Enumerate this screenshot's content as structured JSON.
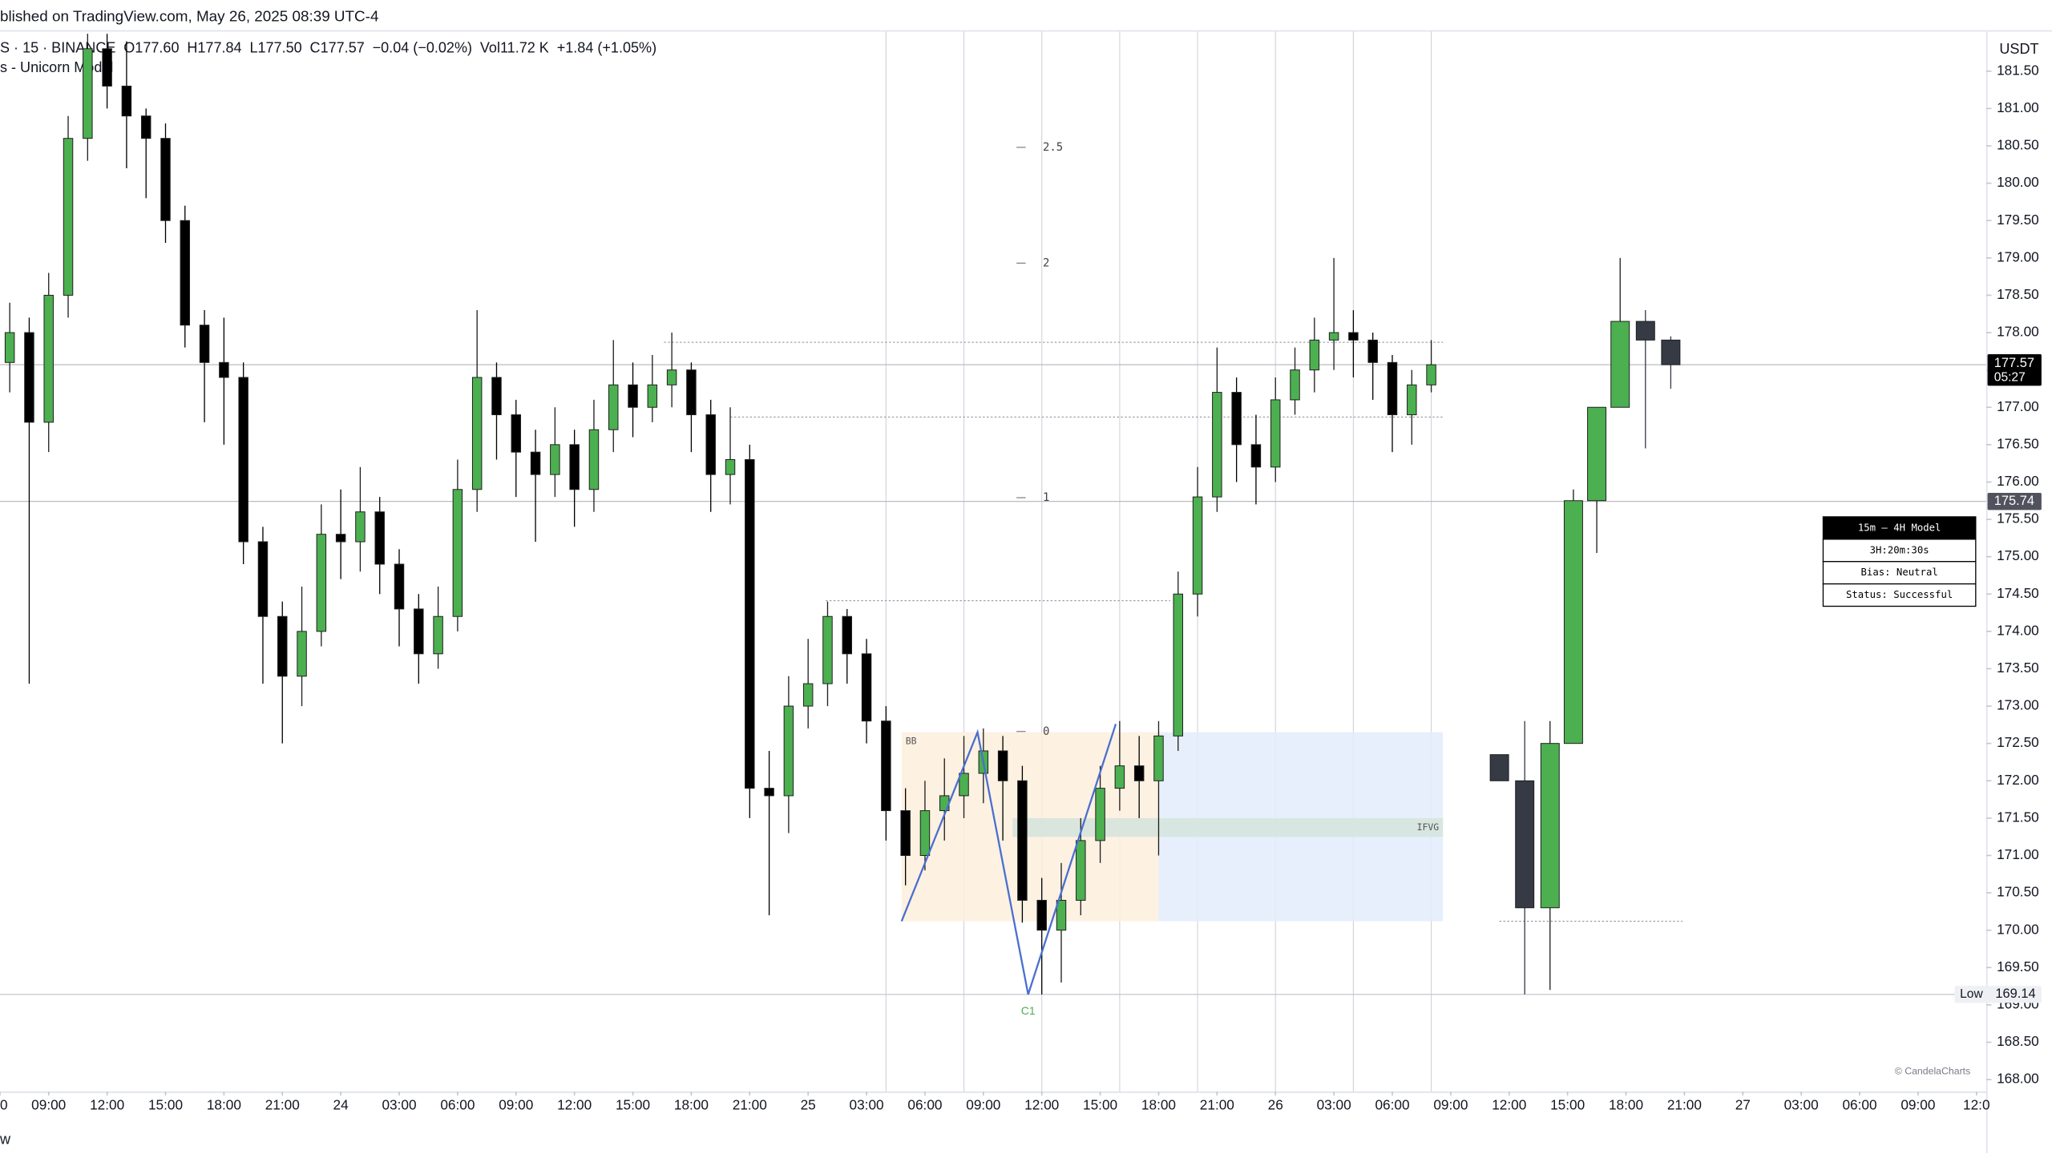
{
  "chart_data": {
    "type": "candlestick",
    "published": "blished on TradingView.com, May 26, 2025 08:39 UTC-4",
    "legend_items": [
      "S · 15 · BINANCE",
      "O177.60",
      "H177.84",
      "L177.50",
      "C177.57",
      "−0.04 (−0.02%)",
      "Vol11.72 K",
      "+1.84 (+1.05%)"
    ],
    "indicator": "s - Unicorn Model",
    "currency": "USDT",
    "watermark": "© CandelaCharts",
    "footer": "w",
    "up_color": "#4caf50",
    "down_color": "#000000",
    "x": [
      1,
      2,
      3,
      4,
      5,
      6,
      7,
      8,
      9,
      10,
      11,
      12,
      13,
      14,
      15,
      16,
      17,
      18,
      19,
      20,
      21,
      22,
      23,
      24,
      25,
      26,
      27,
      28,
      29,
      30,
      31,
      32,
      33,
      34,
      35,
      36,
      37,
      38,
      39,
      40,
      41,
      42,
      43,
      44,
      45,
      46,
      47,
      48,
      49,
      50,
      51,
      52,
      53,
      54,
      55,
      56,
      57,
      58,
      59,
      60,
      61,
      62,
      63,
      64,
      65,
      66,
      67,
      68,
      69,
      70,
      71,
      72,
      73,
      74
    ],
    "open": [
      177.6,
      178.0,
      176.8,
      178.5,
      180.6,
      181.8,
      181.3,
      180.9,
      180.6,
      179.5,
      178.1,
      177.6,
      177.4,
      175.2,
      174.2,
      173.4,
      174.0,
      175.3,
      175.2,
      175.6,
      174.9,
      174.3,
      173.7,
      174.2,
      175.9,
      177.4,
      176.9,
      176.4,
      176.1,
      176.5,
      175.9,
      176.7,
      177.3,
      177.0,
      177.3,
      177.5,
      176.9,
      176.1,
      176.3,
      171.9,
      171.8,
      173.0,
      173.3,
      174.2,
      173.7,
      172.8,
      171.6,
      171.0,
      171.6,
      171.8,
      172.1,
      172.4,
      172.0,
      170.4,
      170.0,
      170.4,
      171.2,
      171.9,
      172.2,
      172.0,
      172.6,
      174.5,
      175.8,
      177.2,
      176.5,
      176.2,
      177.1,
      177.5,
      177.9,
      178.0,
      177.9,
      177.6,
      176.9,
      177.3
    ],
    "high": [
      178.4,
      178.2,
      178.8,
      180.9,
      182.0,
      182.0,
      181.9,
      181.0,
      180.8,
      179.7,
      178.3,
      178.2,
      177.6,
      175.4,
      174.4,
      174.6,
      175.7,
      175.9,
      176.2,
      175.8,
      175.1,
      174.5,
      174.6,
      176.3,
      178.3,
      177.6,
      177.1,
      176.7,
      177.0,
      176.7,
      177.1,
      177.9,
      177.6,
      177.7,
      178.0,
      177.6,
      177.1,
      177.0,
      176.5,
      172.4,
      173.4,
      173.9,
      174.4,
      174.3,
      173.9,
      173.0,
      171.9,
      172.0,
      172.3,
      172.6,
      172.7,
      172.6,
      172.2,
      170.7,
      170.9,
      171.5,
      172.2,
      172.8,
      172.6,
      172.8,
      174.8,
      176.2,
      177.8,
      177.4,
      176.9,
      177.4,
      177.8,
      178.2,
      179.0,
      178.3,
      178.0,
      177.7,
      177.5,
      177.9
    ],
    "low": [
      177.2,
      173.3,
      176.4,
      178.2,
      180.3,
      181.0,
      180.2,
      179.8,
      179.2,
      177.8,
      176.8,
      176.5,
      174.9,
      173.3,
      172.5,
      173.0,
      173.8,
      174.7,
      174.8,
      174.5,
      173.8,
      173.3,
      173.5,
      174.0,
      175.6,
      176.3,
      175.8,
      175.2,
      175.8,
      175.4,
      175.6,
      176.4,
      176.6,
      176.8,
      177.0,
      176.4,
      175.6,
      175.7,
      171.5,
      170.2,
      171.3,
      172.7,
      173.0,
      173.3,
      172.5,
      171.2,
      170.6,
      170.8,
      171.2,
      171.5,
      171.7,
      171.2,
      170.1,
      169.14,
      169.3,
      170.2,
      170.9,
      171.6,
      171.5,
      171.0,
      172.4,
      174.2,
      175.6,
      176.0,
      175.7,
      176.0,
      176.9,
      177.2,
      177.5,
      177.4,
      177.1,
      176.4,
      176.5,
      177.2
    ],
    "close": [
      178.0,
      176.8,
      178.5,
      180.6,
      181.8,
      181.3,
      180.9,
      180.6,
      179.5,
      178.1,
      177.6,
      177.4,
      175.2,
      174.2,
      173.4,
      174.0,
      175.3,
      175.2,
      175.6,
      174.9,
      174.3,
      173.7,
      174.2,
      175.9,
      177.4,
      176.9,
      176.4,
      176.1,
      176.5,
      175.9,
      176.7,
      177.3,
      177.0,
      177.3,
      177.5,
      176.9,
      176.1,
      176.3,
      171.9,
      171.8,
      173.0,
      173.3,
      174.2,
      173.7,
      172.8,
      171.6,
      171.0,
      171.6,
      171.8,
      172.1,
      172.4,
      172.0,
      170.4,
      170.0,
      170.4,
      171.2,
      171.9,
      172.2,
      172.0,
      172.6,
      174.5,
      175.8,
      177.2,
      176.5,
      176.2,
      177.1,
      177.5,
      177.9,
      178.0,
      177.9,
      177.6,
      176.9,
      177.3,
      177.57
    ],
    "htf": {
      "up_color": "#4caf50",
      "down_color": "#363a45",
      "x": [
        77.5,
        78.8,
        80.1,
        81.3,
        82.5,
        83.7,
        85.0,
        86.3
      ],
      "open": [
        172.35,
        172.0,
        170.3,
        172.5,
        175.75,
        177.0,
        178.15,
        177.9
      ],
      "high": [
        172.35,
        172.8,
        172.8,
        175.9,
        177.0,
        179.0,
        178.3,
        177.95
      ],
      "low": [
        172.0,
        169.14,
        169.2,
        172.5,
        175.05,
        177.0,
        176.45,
        177.25
      ],
      "close": [
        172.0,
        170.3,
        172.5,
        175.75,
        177.0,
        178.15,
        177.9,
        177.57
      ]
    },
    "xlim": [
      0.5,
      102.5
    ],
    "xticks": [
      {
        "value": 0.5,
        "label": "0"
      },
      {
        "value": 3,
        "label": "09:00"
      },
      {
        "value": 6,
        "label": "12:00"
      },
      {
        "value": 9,
        "label": "15:00"
      },
      {
        "value": 12,
        "label": "18:00"
      },
      {
        "value": 15,
        "label": "21:00"
      },
      {
        "value": 18,
        "label": "24"
      },
      {
        "value": 21,
        "label": "03:00"
      },
      {
        "value": 24,
        "label": "06:00"
      },
      {
        "value": 27,
        "label": "09:00"
      },
      {
        "value": 30,
        "label": "12:00"
      },
      {
        "value": 33,
        "label": "15:00"
      },
      {
        "value": 36,
        "label": "18:00"
      },
      {
        "value": 39,
        "label": "21:00"
      },
      {
        "value": 42,
        "label": "25"
      },
      {
        "value": 45,
        "label": "03:00"
      },
      {
        "value": 48,
        "label": "06:00"
      },
      {
        "value": 51,
        "label": "09:00"
      },
      {
        "value": 54,
        "label": "12:00"
      },
      {
        "value": 57,
        "label": "15:00"
      },
      {
        "value": 60,
        "label": "18:00"
      },
      {
        "value": 63,
        "label": "21:00"
      },
      {
        "value": 66,
        "label": "26"
      },
      {
        "value": 69,
        "label": "03:00"
      },
      {
        "value": 72,
        "label": "06:00"
      },
      {
        "value": 75,
        "label": "09:00"
      },
      {
        "value": 78,
        "label": "12:00"
      },
      {
        "value": 81,
        "label": "15:00"
      },
      {
        "value": 84,
        "label": "18:00"
      },
      {
        "value": 87,
        "label": "21:00"
      },
      {
        "value": 90,
        "label": "27"
      },
      {
        "value": 93,
        "label": "03:00"
      },
      {
        "value": 96,
        "label": "06:00"
      },
      {
        "value": 99,
        "label": "09:00"
      },
      {
        "value": 102,
        "label": "12:0"
      }
    ],
    "ylim": [
      167.84,
      182.03
    ],
    "yticks": [
      {
        "value": 168,
        "label": "168.00"
      },
      {
        "value": 168.5,
        "label": "168.50"
      },
      {
        "value": 169,
        "label": "169.00"
      },
      {
        "value": 169.5,
        "label": "169.50"
      },
      {
        "value": 170,
        "label": "170.00"
      },
      {
        "value": 170.5,
        "label": "170.50"
      },
      {
        "value": 171,
        "label": "171.00"
      },
      {
        "value": 171.5,
        "label": "171.50"
      },
      {
        "value": 172,
        "label": "172.00"
      },
      {
        "value": 172.5,
        "label": "172.50"
      },
      {
        "value": 173,
        "label": "173.00"
      },
      {
        "value": 173.5,
        "label": "173.50"
      },
      {
        "value": 174,
        "label": "174.00"
      },
      {
        "value": 174.5,
        "label": "174.50"
      },
      {
        "value": 175,
        "label": "175.00"
      },
      {
        "value": 175.5,
        "label": "175.50"
      },
      {
        "value": 176,
        "label": "176.00"
      },
      {
        "value": 176.5,
        "label": "176.50"
      },
      {
        "value": 177,
        "label": "177.00"
      },
      {
        "value": 177.5,
        "label": "177.50"
      },
      {
        "value": 178,
        "label": "178.00"
      },
      {
        "value": 178.5,
        "label": "178.50"
      },
      {
        "value": 179,
        "label": "179.00"
      },
      {
        "value": 179.5,
        "label": "179.50"
      },
      {
        "value": 180,
        "label": "180.00"
      },
      {
        "value": 180.5,
        "label": "180.50"
      },
      {
        "value": 181,
        "label": "181.00"
      },
      {
        "value": 181.5,
        "label": "181.50"
      }
    ],
    "sessions": [
      46,
      50,
      54,
      58,
      62,
      66,
      70,
      74
    ],
    "zones": [
      {
        "label": "BB",
        "x": [
          46.8,
          60.0
        ],
        "y": [
          170.12,
          172.65
        ],
        "color": "#fdefdd"
      },
      {
        "x": [
          60.0,
          74.6
        ],
        "y": [
          170.12,
          172.65
        ],
        "color": "#e3ecfc"
      },
      {
        "label": "IFVG",
        "x": [
          52.5,
          74.6
        ],
        "y": [
          171.25,
          171.5
        ],
        "color": "#d3e4dc"
      }
    ],
    "fib_x": 52.7,
    "fib": [
      {
        "value": 180.48,
        "label": "2.5"
      },
      {
        "value": 178.93,
        "label": "2"
      },
      {
        "value": 175.79,
        "label": "1"
      },
      {
        "value": 172.66,
        "label": "0"
      }
    ],
    "levels": [
      {
        "x": [
          34.6,
          74.6
        ],
        "value": 177.87
      },
      {
        "x": [
          38.0,
          74.6
        ],
        "value": 176.87
      },
      {
        "x": [
          42.9,
          60.6
        ],
        "value": 174.41
      },
      {
        "x": [
          77.5,
          86.9
        ],
        "value": 170.12
      }
    ],
    "swing": {
      "x": [
        46.8,
        50.7,
        53.3,
        57.8
      ],
      "y": [
        170.12,
        172.65,
        169.14,
        172.76
      ],
      "label": "C1",
      "color": "#4a6fd0"
    },
    "last_price": {
      "value": 177.57,
      "label": "177.57",
      "countdown": "05:27"
    },
    "prev_close": {
      "value": 175.74,
      "label": "175.74"
    },
    "low_marker": {
      "value": 169.14,
      "label": "169.14",
      "tag": "Low"
    },
    "panel": [
      "15m – 4H Model",
      "3H:20m:30s",
      "Bias: Neutral",
      "Status: Successful"
    ]
  }
}
